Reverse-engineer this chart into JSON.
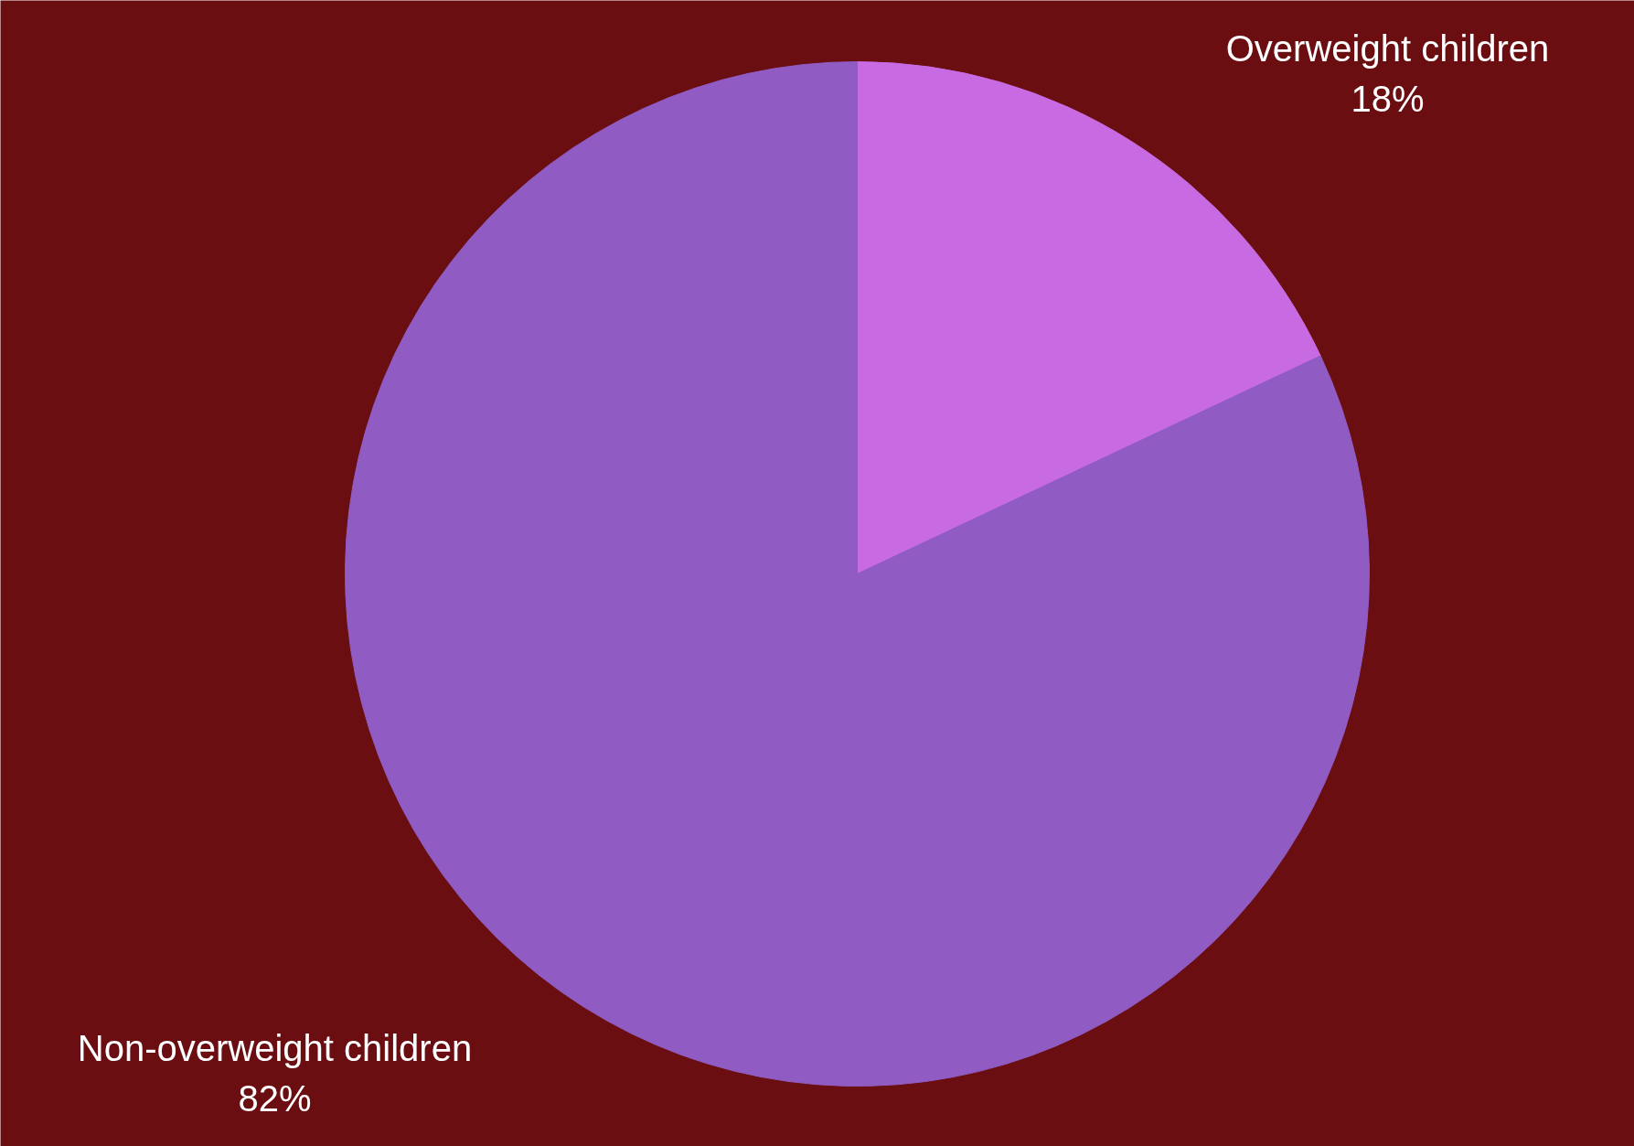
{
  "chart_data": {
    "type": "pie",
    "categories": [
      "Overweight children",
      "Non-overweight children"
    ],
    "values": [
      18,
      82
    ],
    "value_labels": [
      "18%",
      "82%"
    ],
    "colors": [
      "#c86be3",
      "#905cc4"
    ]
  }
}
